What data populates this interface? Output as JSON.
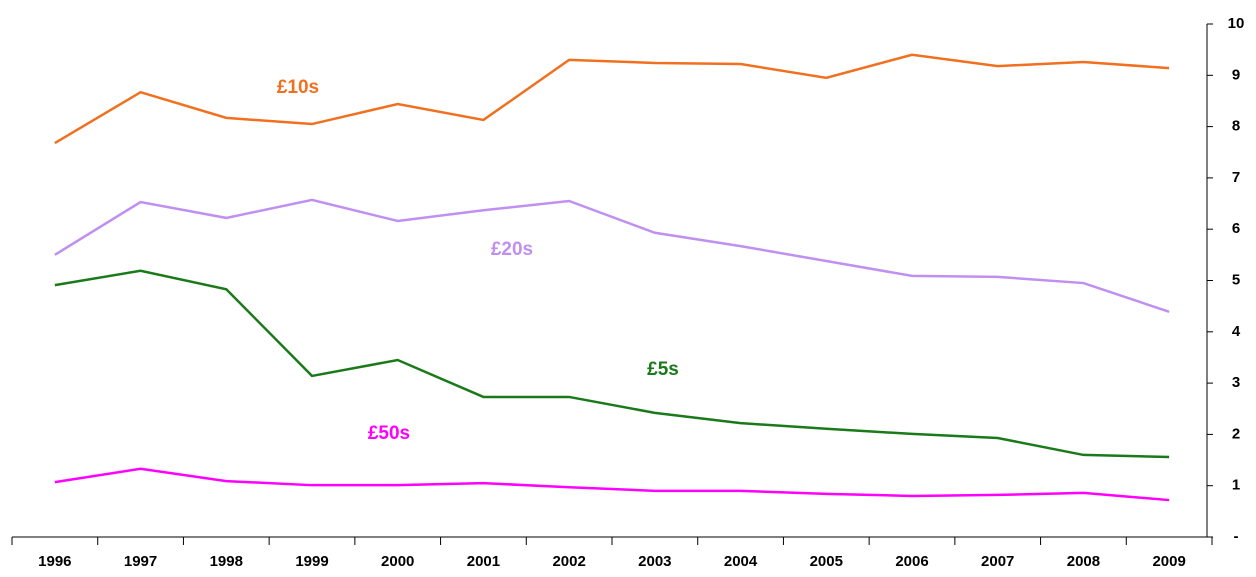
{
  "chart_data": {
    "type": "line",
    "categories": [
      "1996",
      "1997",
      "1998",
      "1999",
      "2000",
      "2001",
      "2002",
      "2003",
      "2004",
      "2005",
      "2006",
      "2007",
      "2008",
      "2009"
    ],
    "series": [
      {
        "name": "£10s",
        "color": "#f07020",
        "values": [
          7.68,
          8.67,
          8.17,
          8.05,
          8.44,
          8.13,
          9.3,
          9.24,
          9.22,
          8.95,
          9.4,
          9.18,
          9.26,
          9.14
        ]
      },
      {
        "name": "£20s",
        "color": "#c090f0",
        "values": [
          5.5,
          6.53,
          6.22,
          6.57,
          6.16,
          6.37,
          6.55,
          5.93,
          5.67,
          5.38,
          5.09,
          5.07,
          4.95,
          4.39
        ]
      },
      {
        "name": "£5s",
        "color": "#1a7a1a",
        "values": [
          4.91,
          5.19,
          4.83,
          3.14,
          3.45,
          2.73,
          2.73,
          2.42,
          2.22,
          2.11,
          2.01,
          1.93,
          1.6,
          1.56
        ]
      },
      {
        "name": "£50s",
        "color": "#ff00ff",
        "values": [
          1.07,
          1.33,
          1.09,
          1.01,
          1.01,
          1.05,
          0.97,
          0.9,
          0.9,
          0.84,
          0.8,
          0.82,
          0.86,
          0.72
        ]
      }
    ],
    "ylim": [
      0,
      10
    ],
    "yticks": [
      {
        "value": 0,
        "label": "-"
      },
      1,
      2,
      3,
      4,
      5,
      6,
      7,
      8,
      9,
      10
    ]
  }
}
